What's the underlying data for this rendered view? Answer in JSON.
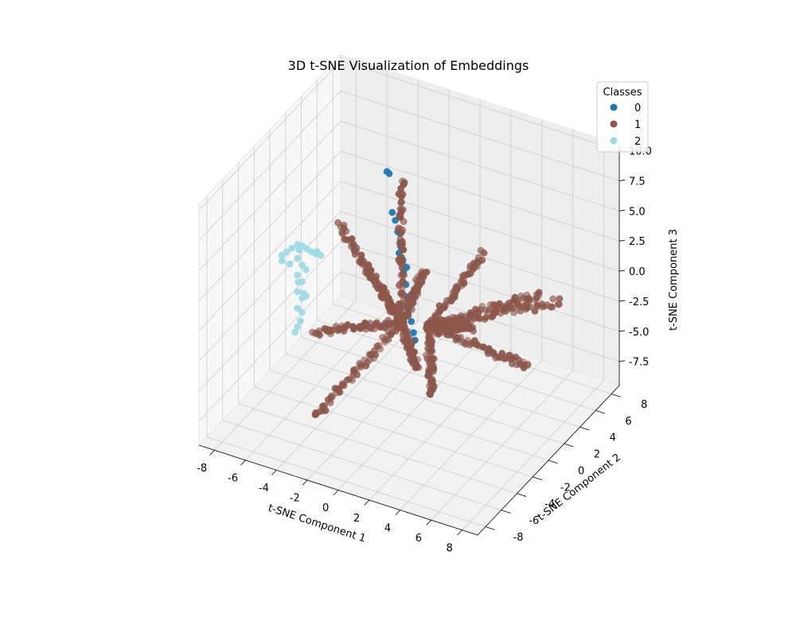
{
  "chart_data": {
    "type": "scatter",
    "projection": "3d",
    "title": "3D t-SNE Visualization of Embeddings",
    "xlabel": "t-SNE Component 1",
    "ylabel": "t-SNE Component 2",
    "zlabel": "t-SNE Component 3",
    "xlim": [
      -9,
      9
    ],
    "ylim": [
      -9,
      9
    ],
    "zlim": [
      -9.5,
      10.5
    ],
    "xticks": [
      -8,
      -6,
      -4,
      -2,
      0,
      2,
      4,
      6,
      8
    ],
    "yticks": [
      -8,
      -6,
      -4,
      -2,
      0,
      2,
      4,
      6,
      8
    ],
    "zticks": [
      -7.5,
      -5.0,
      -2.5,
      0.0,
      2.5,
      5.0,
      7.5,
      10.0
    ],
    "grid": true,
    "legend": {
      "title": "Classes",
      "placement": "top-right",
      "entries": [
        {
          "label": "0",
          "color": "#1f77b4"
        },
        {
          "label": "1",
          "color": "#8c564b"
        },
        {
          "label": "2",
          "color": "#9edae5"
        }
      ]
    },
    "series": [
      {
        "class": 0,
        "color": "#1f77b4",
        "points": [
          [
            -2.2,
            1.5,
            8.8
          ],
          [
            -2.1,
            1.6,
            8.6
          ],
          [
            -1.6,
            1.0,
            6.0
          ],
          [
            -1.3,
            0.8,
            5.6
          ],
          [
            -1.0,
            0.5,
            5.0
          ],
          [
            -0.7,
            0.2,
            4.4
          ],
          [
            -0.6,
            -0.1,
            3.8
          ],
          [
            -0.3,
            -0.2,
            3.4
          ],
          [
            -0.1,
            -0.5,
            2.8
          ],
          [
            0.2,
            -0.8,
            2.0
          ],
          [
            0.4,
            -1.0,
            1.2
          ],
          [
            0.6,
            -1.2,
            0.4
          ],
          [
            0.9,
            -1.5,
            -0.3
          ],
          [
            1.2,
            -1.8,
            -0.9
          ],
          [
            1.4,
            -2.0,
            -1.3
          ],
          [
            -0.9,
            0.6,
            4.8
          ],
          [
            -0.5,
            0.0,
            4.2
          ],
          [
            0.0,
            -0.3,
            3.0
          ]
        ]
      },
      {
        "class": 1,
        "color": "#8c564b",
        "arms": [
          {
            "start": [
              -0.5,
              0.0,
              -2.0
            ],
            "end": [
              -1.0,
              1.0,
              9.0
            ]
          },
          {
            "start": [
              -0.5,
              0.0,
              -2.0
            ],
            "end": [
              -4.5,
              0.0,
              4.5
            ]
          },
          {
            "start": [
              -0.5,
              0.0,
              -2.0
            ],
            "end": [
              -4.0,
              -4.0,
              -1.5
            ]
          },
          {
            "start": [
              -0.5,
              0.0,
              -2.0
            ],
            "end": [
              -3.5,
              -5.0,
              -7.5
            ]
          },
          {
            "start": [
              -0.5,
              0.0,
              -2.0
            ],
            "end": [
              1.5,
              -2.0,
              -3.5
            ]
          },
          {
            "start": [
              1.0,
              0.5,
              -2.0
            ],
            "end": [
              4.0,
              1.5,
              4.5
            ]
          },
          {
            "start": [
              1.0,
              0.5,
              -2.0
            ],
            "end": [
              6.5,
              4.0,
              0.5
            ]
          },
          {
            "start": [
              1.0,
              0.5,
              -2.0
            ],
            "end": [
              7.0,
              5.5,
              -1.0
            ]
          },
          {
            "start": [
              1.0,
              0.5,
              -2.0
            ],
            "end": [
              6.5,
              2.5,
              -4.5
            ]
          },
          {
            "start": [
              1.0,
              0.5,
              -2.0
            ],
            "end": [
              2.5,
              -2.0,
              -5.5
            ]
          },
          {
            "start": [
              1.0,
              0.5,
              -2.0
            ],
            "end": [
              3.5,
              1.0,
              -1.5
            ]
          },
          {
            "start": [
              -0.5,
              0.0,
              -2.0
            ],
            "end": [
              0.5,
              1.0,
              2.0
            ]
          },
          {
            "start": [
              -0.5,
              0.0,
              -2.0
            ],
            "end": [
              -2.0,
              -1.5,
              3.0
            ]
          }
        ],
        "points_per_arm": 60
      },
      {
        "class": 2,
        "color": "#9edae5",
        "points": [
          [
            -7.2,
            -2.0,
            2.2
          ],
          [
            -7.0,
            -1.8,
            2.4
          ],
          [
            -6.8,
            -1.5,
            2.6
          ],
          [
            -6.6,
            -1.2,
            2.8
          ],
          [
            -6.4,
            -1.0,
            2.6
          ],
          [
            -6.2,
            -0.8,
            2.3
          ],
          [
            -6.0,
            -0.6,
            2.0
          ],
          [
            -5.8,
            -0.4,
            1.8
          ],
          [
            -5.6,
            -0.2,
            1.6
          ],
          [
            -6.5,
            -1.4,
            1.8
          ],
          [
            -6.8,
            -1.8,
            1.5
          ],
          [
            -6.3,
            -1.2,
            1.2
          ],
          [
            -6.4,
            -1.6,
            0.6
          ],
          [
            -6.2,
            -1.4,
            0.0
          ],
          [
            -6.3,
            -1.8,
            -0.6
          ],
          [
            -6.1,
            -1.6,
            -1.2
          ],
          [
            -6.2,
            -2.0,
            -1.8
          ],
          [
            -6.0,
            -1.8,
            -2.2
          ],
          [
            -5.9,
            -2.2,
            -2.6
          ],
          [
            -6.0,
            -2.4,
            -3.0
          ],
          [
            -5.8,
            -2.0,
            -0.4
          ],
          [
            -6.6,
            -1.0,
            2.2
          ],
          [
            -7.1,
            -2.2,
            1.9
          ],
          [
            -5.7,
            -0.5,
            2.1
          ],
          [
            -6.1,
            -2.5,
            -3.4
          ],
          [
            -5.9,
            -1.5,
            -1.0
          ],
          [
            -6.2,
            -1.9,
            0.3
          ],
          [
            -6.0,
            -1.3,
            1.0
          ]
        ]
      }
    ]
  }
}
